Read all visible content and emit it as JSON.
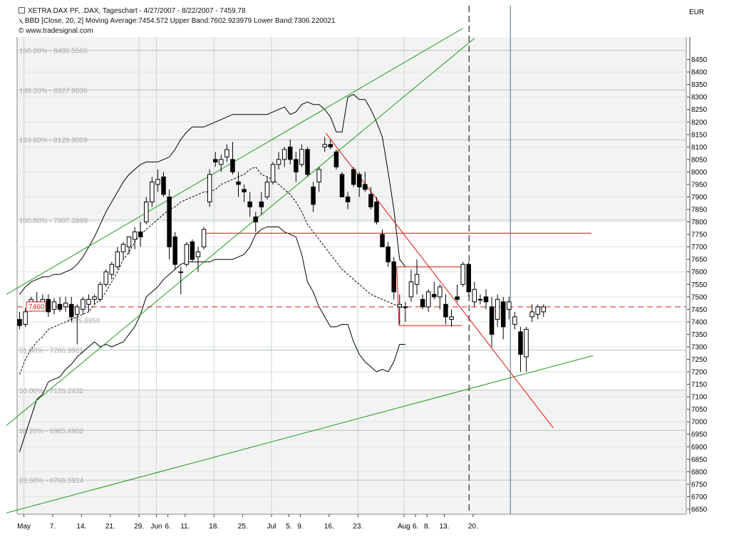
{
  "header": {
    "title": "XETRA DAX PF, .DAX, Tageschart - 4/27/2007 - 8/22/2007 - 7459.78",
    "indicator": "BBD [Close, 20, 2] Moving Average:7454.572 Upper Band:7602.923979 Lower Band:7306.220021",
    "copyright": "© www.tradesignal.com"
  },
  "colors": {
    "background": "#ffffff",
    "plot_band": "#f3f3f3",
    "grid": "#c8d8c8",
    "fib_line": "#b8c4b8",
    "channel": "#1f9a1f",
    "downtrend": "#e01010",
    "bollinger": "#000000",
    "current_price_label": "#e02020"
  },
  "chart_data": {
    "type": "candlestick",
    "currency_label": "EUR",
    "ylim": [
      6630,
      8540
    ],
    "y_ticks": [
      6650,
      6700,
      6750,
      6800,
      6850,
      6900,
      6950,
      7000,
      7050,
      7100,
      7150,
      7200,
      7250,
      7300,
      7350,
      7400,
      7450,
      7500,
      7550,
      7600,
      7650,
      7700,
      7750,
      7800,
      7850,
      7900,
      7950,
      8000,
      8050,
      8100,
      8150,
      8200,
      8250,
      8300,
      8350,
      8400,
      8450
    ],
    "x_tick_labels": [
      {
        "label": "May",
        "i": 1
      },
      {
        "label": "7.",
        "i": 6
      },
      {
        "label": "14.",
        "i": 11
      },
      {
        "label": "21.",
        "i": 16
      },
      {
        "label": "29.",
        "i": 21
      },
      {
        "label": "Jun",
        "i": 24
      },
      {
        "label": "6.",
        "i": 26
      },
      {
        "label": "11.",
        "i": 29
      },
      {
        "label": "18.",
        "i": 34
      },
      {
        "label": "25.",
        "i": 39
      },
      {
        "label": "Jul",
        "i": 44
      },
      {
        "label": "5.",
        "i": 47
      },
      {
        "label": "9.",
        "i": 49
      },
      {
        "label": "16.",
        "i": 54
      },
      {
        "label": "23.",
        "i": 59
      },
      {
        "label": "Aug",
        "i": 67
      },
      {
        "label": "6.",
        "i": 69
      },
      {
        "label": "8.",
        "i": 71
      },
      {
        "label": "13.",
        "i": 74
      },
      {
        "label": "20.",
        "i": 79
      }
    ],
    "candles": [
      {
        "o": 7410,
        "h": 7440,
        "l": 7370,
        "c": 7385
      },
      {
        "o": 7390,
        "h": 7455,
        "l": 7380,
        "c": 7440
      },
      {
        "o": 7445,
        "h": 7500,
        "l": 7440,
        "c": 7490
      },
      {
        "o": 7480,
        "h": 7520,
        "l": 7460,
        "c": 7470
      },
      {
        "o": 7465,
        "h": 7510,
        "l": 7445,
        "c": 7490
      },
      {
        "o": 7490,
        "h": 7510,
        "l": 7420,
        "c": 7440
      },
      {
        "o": 7450,
        "h": 7495,
        "l": 7430,
        "c": 7480
      },
      {
        "o": 7470,
        "h": 7500,
        "l": 7440,
        "c": 7450
      },
      {
        "o": 7460,
        "h": 7500,
        "l": 7440,
        "c": 7475
      },
      {
        "o": 7470,
        "h": 7500,
        "l": 7400,
        "c": 7420
      },
      {
        "o": 7430,
        "h": 7470,
        "l": 7310,
        "c": 7460
      },
      {
        "o": 7450,
        "h": 7500,
        "l": 7430,
        "c": 7490
      },
      {
        "o": 7470,
        "h": 7510,
        "l": 7440,
        "c": 7490
      },
      {
        "o": 7490,
        "h": 7510,
        "l": 7470,
        "c": 7500
      },
      {
        "o": 7490,
        "h": 7560,
        "l": 7480,
        "c": 7550
      },
      {
        "o": 7550,
        "h": 7610,
        "l": 7540,
        "c": 7600
      },
      {
        "o": 7590,
        "h": 7640,
        "l": 7570,
        "c": 7630
      },
      {
        "o": 7620,
        "h": 7700,
        "l": 7610,
        "c": 7680
      },
      {
        "o": 7680,
        "h": 7720,
        "l": 7650,
        "c": 7710
      },
      {
        "o": 7700,
        "h": 7740,
        "l": 7670,
        "c": 7740
      },
      {
        "o": 7730,
        "h": 7780,
        "l": 7690,
        "c": 7760
      },
      {
        "o": 7760,
        "h": 7800,
        "l": 7700,
        "c": 7740
      },
      {
        "o": 7800,
        "h": 7900,
        "l": 7790,
        "c": 7880
      },
      {
        "o": 7880,
        "h": 7980,
        "l": 7860,
        "c": 7960
      },
      {
        "o": 7950,
        "h": 8010,
        "l": 7920,
        "c": 7970
      },
      {
        "o": 7980,
        "h": 8000,
        "l": 7900,
        "c": 7910
      },
      {
        "o": 7900,
        "h": 7930,
        "l": 7650,
        "c": 7700
      },
      {
        "o": 7740,
        "h": 7760,
        "l": 7610,
        "c": 7630
      },
      {
        "o": 7600,
        "h": 7620,
        "l": 7510,
        "c": 7600
      },
      {
        "o": 7630,
        "h": 7720,
        "l": 7620,
        "c": 7710
      },
      {
        "o": 7720,
        "h": 7730,
        "l": 7640,
        "c": 7650
      },
      {
        "o": 7660,
        "h": 7700,
        "l": 7600,
        "c": 7680
      },
      {
        "o": 7700,
        "h": 7780,
        "l": 7690,
        "c": 7770
      },
      {
        "o": 7880,
        "h": 8010,
        "l": 7860,
        "c": 7990
      },
      {
        "o": 8050,
        "h": 8080,
        "l": 8020,
        "c": 8040
      },
      {
        "o": 8030,
        "h": 8070,
        "l": 8000,
        "c": 8050
      },
      {
        "o": 8060,
        "h": 8110,
        "l": 8040,
        "c": 8090
      },
      {
        "o": 8050,
        "h": 8120,
        "l": 7990,
        "c": 8000
      },
      {
        "o": 7960,
        "h": 8000,
        "l": 7900,
        "c": 7950
      },
      {
        "o": 7930,
        "h": 7950,
        "l": 7880,
        "c": 7920
      },
      {
        "o": 7880,
        "h": 7920,
        "l": 7820,
        "c": 7860
      },
      {
        "o": 7820,
        "h": 7840,
        "l": 7760,
        "c": 7800
      },
      {
        "o": 7880,
        "h": 7920,
        "l": 7830,
        "c": 7860
      },
      {
        "o": 7900,
        "h": 7980,
        "l": 7890,
        "c": 7960
      },
      {
        "o": 7960,
        "h": 8040,
        "l": 7950,
        "c": 8030
      },
      {
        "o": 8030,
        "h": 8080,
        "l": 8010,
        "c": 8050
      },
      {
        "o": 8050,
        "h": 8100,
        "l": 8020,
        "c": 8090
      },
      {
        "o": 8100,
        "h": 8130,
        "l": 8030,
        "c": 8050
      },
      {
        "o": 8050,
        "h": 8080,
        "l": 7960,
        "c": 8000
      },
      {
        "o": 8030,
        "h": 8110,
        "l": 8020,
        "c": 8090
      },
      {
        "o": 8090,
        "h": 8100,
        "l": 7980,
        "c": 7990
      },
      {
        "o": 7940,
        "h": 7960,
        "l": 7840,
        "c": 7870
      },
      {
        "o": 7960,
        "h": 8020,
        "l": 7920,
        "c": 8010
      },
      {
        "o": 8100,
        "h": 8140,
        "l": 8080,
        "c": 8110
      },
      {
        "o": 8110,
        "h": 8130,
        "l": 8090,
        "c": 8100
      },
      {
        "o": 8080,
        "h": 8090,
        "l": 8010,
        "c": 8020
      },
      {
        "o": 7990,
        "h": 8000,
        "l": 7900,
        "c": 7900
      },
      {
        "o": 7900,
        "h": 7920,
        "l": 7850,
        "c": 7880
      },
      {
        "o": 8010,
        "h": 8020,
        "l": 7940,
        "c": 7950
      },
      {
        "o": 7990,
        "h": 8000,
        "l": 7900,
        "c": 7940
      },
      {
        "o": 7950,
        "h": 8000,
        "l": 7920,
        "c": 7930
      },
      {
        "o": 7910,
        "h": 7940,
        "l": 7850,
        "c": 7860
      },
      {
        "o": 7880,
        "h": 7900,
        "l": 7790,
        "c": 7800
      },
      {
        "o": 7750,
        "h": 7770,
        "l": 7700,
        "c": 7700
      },
      {
        "o": 7700,
        "h": 7720,
        "l": 7620,
        "c": 7640
      },
      {
        "o": 7640,
        "h": 7660,
        "l": 7490,
        "c": 7520
      },
      {
        "o": 7460,
        "h": 7510,
        "l": 7390,
        "c": 7470
      },
      {
        "o": 7460,
        "h": 7480,
        "l": 7400,
        "c": 7460
      },
      {
        "o": 7500,
        "h": 7610,
        "l": 7480,
        "c": 7560
      },
      {
        "o": 7550,
        "h": 7650,
        "l": 7510,
        "c": 7590
      },
      {
        "o": 7490,
        "h": 7510,
        "l": 7450,
        "c": 7460
      },
      {
        "o": 7460,
        "h": 7530,
        "l": 7440,
        "c": 7520
      },
      {
        "o": 7510,
        "h": 7560,
        "l": 7490,
        "c": 7500
      },
      {
        "o": 7500,
        "h": 7550,
        "l": 7450,
        "c": 7540
      },
      {
        "o": 7470,
        "h": 7510,
        "l": 7390,
        "c": 7420
      },
      {
        "o": 7410,
        "h": 7450,
        "l": 7380,
        "c": 7420
      },
      {
        "o": 7500,
        "h": 7550,
        "l": 7480,
        "c": 7490
      },
      {
        "o": 7550,
        "h": 7640,
        "l": 7540,
        "c": 7630
      },
      {
        "o": 7630,
        "h": 7640,
        "l": 7500,
        "c": 7520
      },
      {
        "o": 7480,
        "h": 7560,
        "l": 7460,
        "c": 7530
      },
      {
        "o": 7490,
        "h": 7510,
        "l": 7470,
        "c": 7490
      },
      {
        "o": 7500,
        "h": 7530,
        "l": 7450,
        "c": 7480
      },
      {
        "o": 7460,
        "h": 7500,
        "l": 7300,
        "c": 7350
      },
      {
        "o": 7410,
        "h": 7510,
        "l": 7380,
        "c": 7490
      },
      {
        "o": 7480,
        "h": 7500,
        "l": 7330,
        "c": 7380
      },
      {
        "o": 7450,
        "h": 7500,
        "l": 7410,
        "c": 7480
      },
      {
        "o": 7390,
        "h": 7440,
        "l": 7370,
        "c": 7420
      },
      {
        "o": 7360,
        "h": 7380,
        "l": 7200,
        "c": 7270
      },
      {
        "o": 7260,
        "h": 7380,
        "l": 7200,
        "c": 7370
      },
      {
        "o": 7420,
        "h": 7470,
        "l": 7400,
        "c": 7440
      },
      {
        "o": 7430,
        "h": 7470,
        "l": 7410,
        "c": 7460
      },
      {
        "o": 7440,
        "h": 7470,
        "l": 7420,
        "c": 7460
      }
    ],
    "bollinger": {
      "upper": [
        7510,
        7540,
        7560,
        7570,
        7580,
        7580,
        7590,
        7590,
        7600,
        7610,
        7630,
        7660,
        7700,
        7740,
        7790,
        7840,
        7880,
        7920,
        7960,
        7990,
        8010,
        8030,
        8040,
        8040,
        8040,
        8050,
        8060,
        8090,
        8130,
        8160,
        8180,
        8180,
        8180,
        8190,
        8200,
        8210,
        8220,
        8230,
        8230,
        8230,
        8230,
        8230,
        8230,
        8230,
        8240,
        8250,
        8260,
        8230,
        8240,
        8270,
        8280,
        8270,
        8270,
        8250,
        8220,
        8160,
        8160,
        8300,
        8310,
        8290,
        8290,
        8250,
        8200,
        8140,
        8000,
        7850,
        7650,
        7620
      ],
      "middle": [
        7190,
        7250,
        7290,
        7320,
        7340,
        7370,
        7380,
        7390,
        7400,
        7410,
        7420,
        7430,
        7440,
        7470,
        7490,
        7520,
        7560,
        7600,
        7650,
        7680,
        7720,
        7750,
        7770,
        7790,
        7810,
        7830,
        7850,
        7860,
        7880,
        7890,
        7900,
        7910,
        7920,
        7920,
        7930,
        7950,
        7960,
        7970,
        7980,
        7990,
        8010,
        8020,
        7990,
        7980,
        7970,
        7950,
        7930,
        7910,
        7880,
        7840,
        7790,
        7760,
        7730,
        7700,
        7670,
        7640,
        7610,
        7590,
        7570,
        7550,
        7530,
        7510,
        7500,
        7490,
        7480,
        7470,
        7460,
        7455
      ],
      "lower": [
        6880,
        6950,
        7020,
        7090,
        7110,
        7160,
        7170,
        7180,
        7210,
        7230,
        7260,
        7280,
        7300,
        7320,
        7300,
        7310,
        7300,
        7310,
        7320,
        7350,
        7380,
        7430,
        7500,
        7520,
        7540,
        7570,
        7590,
        7610,
        7630,
        7640,
        7640,
        7640,
        7640,
        7640,
        7650,
        7650,
        7650,
        7650,
        7660,
        7670,
        7700,
        7750,
        7770,
        7780,
        7780,
        7780,
        7760,
        7750,
        7740,
        7670,
        7560,
        7520,
        7460,
        7420,
        7380,
        7380,
        7390,
        7390,
        7320,
        7270,
        7240,
        7220,
        7200,
        7210,
        7200,
        7240,
        7310,
        7310
      ]
    },
    "fibonacci_levels": [
      {
        "label": "150.00% - 8486.5566",
        "value": 8486.5566
      },
      {
        "label": "138.20% - 8327.8036",
        "value": 8327.8036
      },
      {
        "label": "123.60% - 8128.9059",
        "value": 8128.9059
      },
      {
        "label": "100.00% - 7807.3999",
        "value": 7807.3999
      },
      {
        "label": "61.80% - 7286.9961",
        "value": 7286.9961
      },
      {
        "label": "50.00% - 7126.2432",
        "value": 7126.2432
      },
      {
        "label": "38.20% - 6965.4902",
        "value": 6965.4902
      },
      {
        "label": "23.60% - 6766.5924",
        "value": 6766.5924
      }
    ],
    "partial_fib_label": "7375.8958",
    "current_price": {
      "value": 7459.78,
      "label": "7460"
    },
    "drawn_lines": {
      "channel_upper": [
        [
          -2.3,
          7510
        ],
        [
          77,
          8575
        ]
      ],
      "channel_mid": [
        [
          -2.3,
          6985
        ],
        [
          79,
          8535
        ]
      ],
      "channel_lower": [
        [
          -2.3,
          6635
        ],
        [
          99.6,
          7265
        ]
      ],
      "downtrend": [
        [
          53.2,
          8155
        ],
        [
          92.7,
          6975
        ]
      ],
      "horizontal_resistance": [
        [
          31.7,
          7755
        ],
        [
          99.3,
          7755
        ]
      ],
      "box_top": [
        [
          65.5,
          7620
        ],
        [
          77.1,
          7620
        ]
      ],
      "box_bottom": [
        [
          65.9,
          7385
        ],
        [
          76.8,
          7385
        ]
      ]
    },
    "vertical_marker_index": 78,
    "right_edge_index": 84
  }
}
